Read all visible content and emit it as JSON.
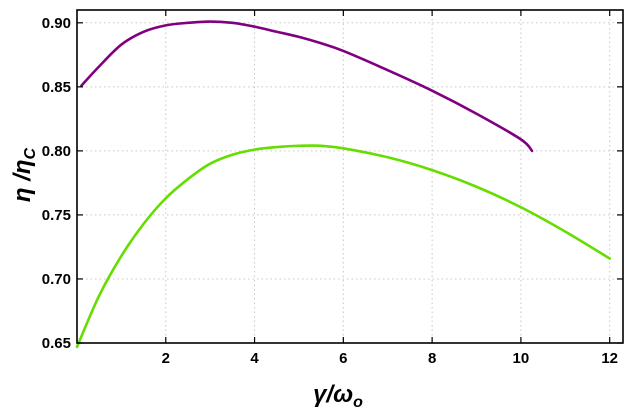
{
  "chart_data": {
    "type": "line",
    "title": "",
    "xlabel": {
      "main": "γ/ω",
      "sub": "o"
    },
    "ylabel": {
      "main": "η /η",
      "sub": "C"
    },
    "xlim": [
      0,
      12.3
    ],
    "ylim": [
      0.65,
      0.91
    ],
    "xticks": [
      2,
      4,
      6,
      8,
      10,
      12
    ],
    "yticks": [
      0.65,
      0.7,
      0.75,
      0.8,
      0.85,
      0.9
    ],
    "xtick_labels": [
      "2",
      "4",
      "6",
      "8",
      "10",
      "12"
    ],
    "ytick_labels": [
      "0.65",
      "0.70",
      "0.75",
      "0.80",
      "0.85",
      "0.90"
    ],
    "grid": true,
    "series": [
      {
        "color": "#800080",
        "x": [
          0.1,
          0.5,
          1,
          1.5,
          2,
          2.5,
          3,
          3.5,
          4,
          4.5,
          5,
          5.5,
          6,
          7,
          8,
          9,
          10,
          10.25
        ],
        "y": [
          0.851,
          0.866,
          0.883,
          0.893,
          0.898,
          0.9,
          0.901,
          0.9,
          0.897,
          0.893,
          0.889,
          0.884,
          0.878,
          0.863,
          0.847,
          0.829,
          0.809,
          0.8
        ]
      },
      {
        "color": "#66dd00",
        "x": [
          0,
          0.5,
          1,
          1.5,
          2,
          2.5,
          3,
          3.5,
          4,
          4.5,
          5,
          5.5,
          6,
          7,
          8,
          9,
          10,
          11,
          12
        ],
        "y": [
          0.647,
          0.687,
          0.718,
          0.743,
          0.763,
          0.778,
          0.79,
          0.797,
          0.801,
          0.803,
          0.804,
          0.804,
          0.802,
          0.795,
          0.785,
          0.772,
          0.756,
          0.737,
          0.716
        ]
      }
    ]
  }
}
